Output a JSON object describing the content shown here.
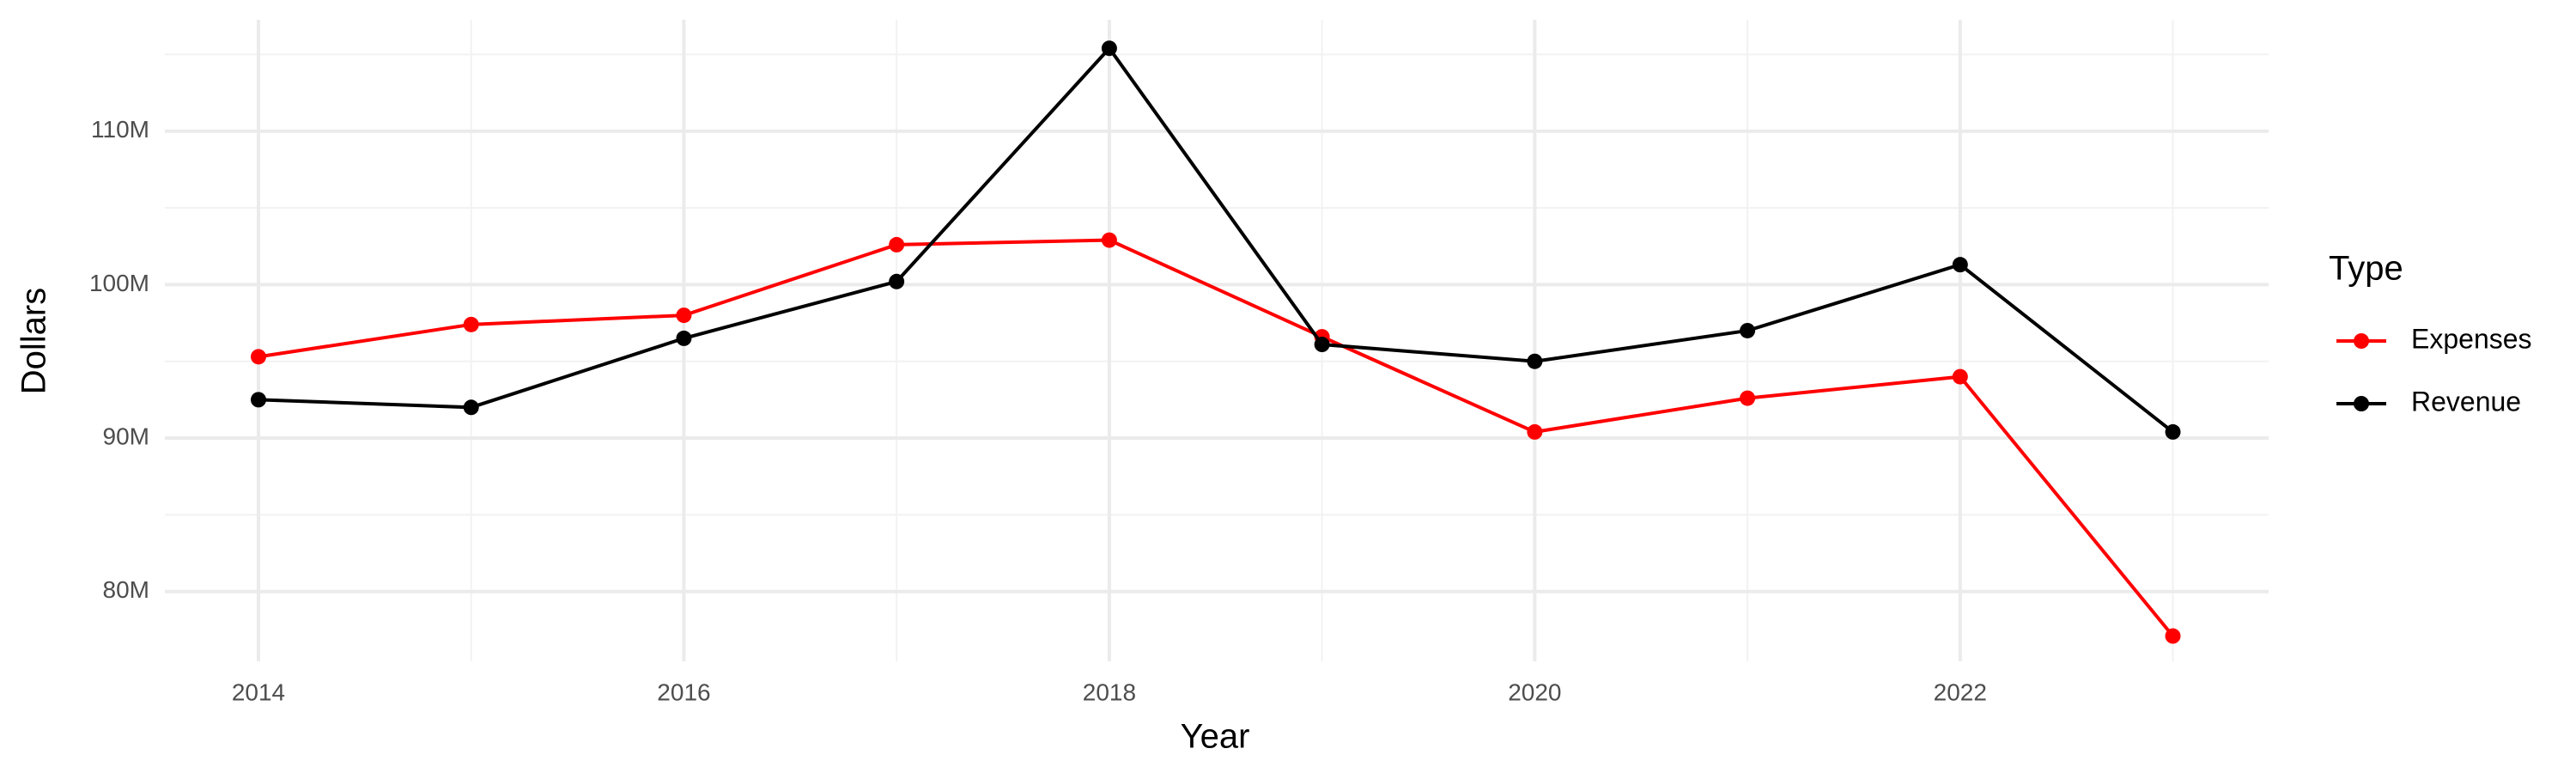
{
  "chart_data": {
    "type": "line",
    "xlabel": "Year",
    "ylabel": "Dollars",
    "legend_title": "Type",
    "legend": "right",
    "grid": true,
    "x": [
      2014,
      2015,
      2016,
      2017,
      2018,
      2019,
      2020,
      2021,
      2022,
      2023
    ],
    "series": [
      {
        "name": "Expenses",
        "color": "#ff0000",
        "values": [
          95300000,
          97400000,
          98000000,
          102600000,
          102900000,
          96600000,
          90400000,
          92600000,
          94000000,
          77100000
        ]
      },
      {
        "name": "Revenue",
        "color": "#000000",
        "values": [
          92500000,
          92000000,
          96500000,
          100200000,
          115400000,
          96100000,
          95000000,
          97000000,
          101300000,
          90400000
        ]
      }
    ],
    "xlim": [
      2013.56,
      2023.45
    ],
    "xticks": [
      2014,
      2016,
      2018,
      2020,
      2022
    ],
    "ylim": [
      75450000,
      117260000
    ],
    "yticks": [
      {
        "value": 80000000,
        "label": "80M"
      },
      {
        "value": 90000000,
        "label": "90M"
      },
      {
        "value": 100000000,
        "label": "100M"
      },
      {
        "value": 110000000,
        "label": "110M"
      }
    ]
  }
}
